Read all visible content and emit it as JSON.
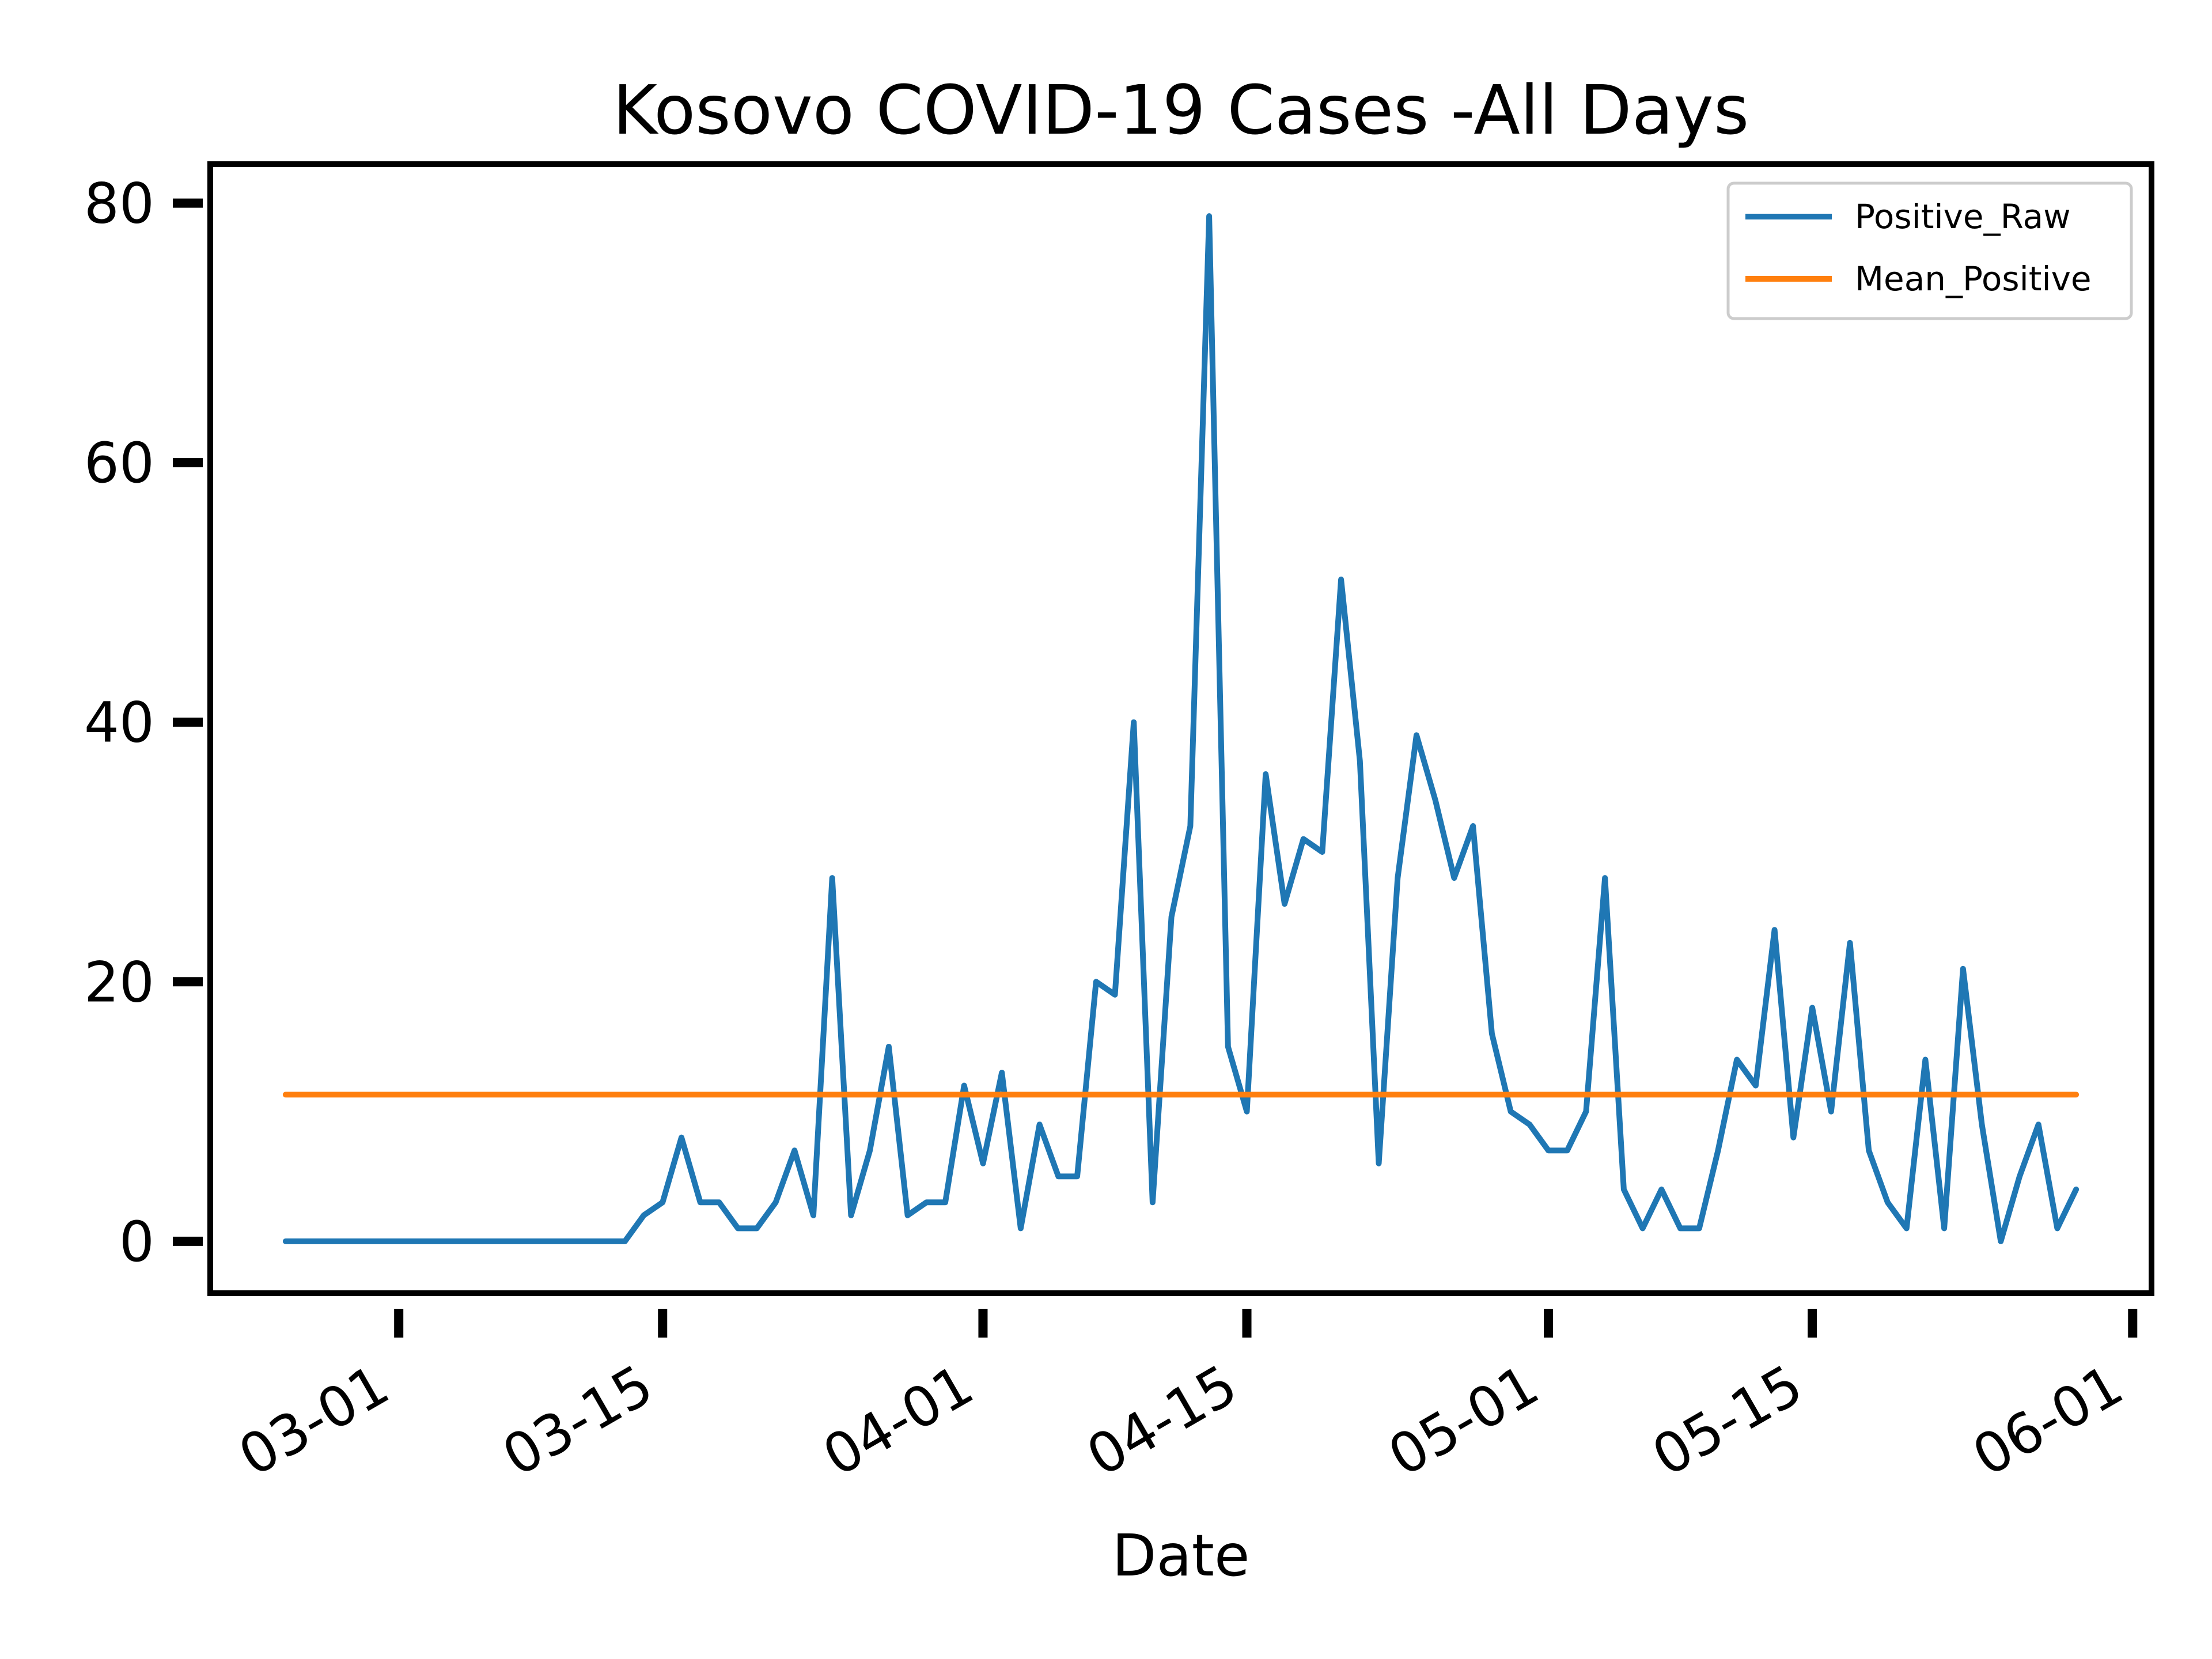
{
  "chart_data": {
    "type": "line",
    "title": "Kosovo COVID-19 Cases -All Days",
    "xlabel": "Date",
    "ylabel": "",
    "ylim": [
      -4,
      83
    ],
    "xlim": [
      "2020-02-20",
      "2020-06-02"
    ],
    "x_ticks": [
      "03-01",
      "03-15",
      "04-01",
      "04-15",
      "05-01",
      "05-15",
      "06-01"
    ],
    "x_tick_dates": [
      "2020-03-01",
      "2020-03-15",
      "2020-04-01",
      "2020-04-15",
      "2020-05-01",
      "2020-05-15",
      "2020-06-01"
    ],
    "y_ticks": [
      "0",
      "20",
      "40",
      "60",
      "80"
    ],
    "y_tick_values": [
      0,
      20,
      40,
      60,
      80
    ],
    "grid": false,
    "legend_position": "top-right",
    "colors": {
      "Positive_Raw": "#1f77b4",
      "Mean_Positive": "#ff7f0e"
    },
    "series": [
      {
        "name": "Positive_Raw",
        "points": [
          [
            "2020-02-24",
            0
          ],
          [
            "2020-02-27",
            0
          ],
          [
            "2020-03-02",
            0
          ],
          [
            "2020-03-06",
            0
          ],
          [
            "2020-03-09",
            0
          ],
          [
            "2020-03-12",
            0
          ],
          [
            "2020-03-13",
            0
          ],
          [
            "2020-03-14",
            2
          ],
          [
            "2020-03-15",
            3
          ],
          [
            "2020-03-16",
            8
          ],
          [
            "2020-03-17",
            3
          ],
          [
            "2020-03-18",
            3
          ],
          [
            "2020-03-19",
            1
          ],
          [
            "2020-03-20",
            1
          ],
          [
            "2020-03-21",
            3
          ],
          [
            "2020-03-22",
            7
          ],
          [
            "2020-03-23",
            2
          ],
          [
            "2020-03-24",
            28
          ],
          [
            "2020-03-25",
            2
          ],
          [
            "2020-03-26",
            7
          ],
          [
            "2020-03-27",
            15
          ],
          [
            "2020-03-28",
            2
          ],
          [
            "2020-03-29",
            3
          ],
          [
            "2020-03-30",
            3
          ],
          [
            "2020-03-31",
            12
          ],
          [
            "2020-04-01",
            6
          ],
          [
            "2020-04-02",
            13
          ],
          [
            "2020-04-03",
            1
          ],
          [
            "2020-04-04",
            9
          ],
          [
            "2020-04-05",
            5
          ],
          [
            "2020-04-06",
            5
          ],
          [
            "2020-04-07",
            20
          ],
          [
            "2020-04-08",
            19
          ],
          [
            "2020-04-09",
            40
          ],
          [
            "2020-04-10",
            3
          ],
          [
            "2020-04-11",
            25
          ],
          [
            "2020-04-12",
            32
          ],
          [
            "2020-04-13",
            79
          ],
          [
            "2020-04-14",
            15
          ],
          [
            "2020-04-15",
            10
          ],
          [
            "2020-04-16",
            36
          ],
          [
            "2020-04-17",
            26
          ],
          [
            "2020-04-18",
            31
          ],
          [
            "2020-04-19",
            30
          ],
          [
            "2020-04-20",
            51
          ],
          [
            "2020-04-21",
            37
          ],
          [
            "2020-04-22",
            6
          ],
          [
            "2020-04-23",
            28
          ],
          [
            "2020-04-24",
            39
          ],
          [
            "2020-04-25",
            34
          ],
          [
            "2020-04-26",
            28
          ],
          [
            "2020-04-27",
            32
          ],
          [
            "2020-04-28",
            16
          ],
          [
            "2020-04-29",
            10
          ],
          [
            "2020-04-30",
            9
          ],
          [
            "2020-05-01",
            7
          ],
          [
            "2020-05-02",
            7
          ],
          [
            "2020-05-03",
            10
          ],
          [
            "2020-05-04",
            28
          ],
          [
            "2020-05-05",
            4
          ],
          [
            "2020-05-06",
            1
          ],
          [
            "2020-05-07",
            4
          ],
          [
            "2020-05-08",
            1
          ],
          [
            "2020-05-09",
            1
          ],
          [
            "2020-05-10",
            7
          ],
          [
            "2020-05-11",
            14
          ],
          [
            "2020-05-12",
            12
          ],
          [
            "2020-05-13",
            24
          ],
          [
            "2020-05-14",
            8
          ],
          [
            "2020-05-15",
            18
          ],
          [
            "2020-05-16",
            10
          ],
          [
            "2020-05-17",
            23
          ],
          [
            "2020-05-18",
            7
          ],
          [
            "2020-05-19",
            3
          ],
          [
            "2020-05-20",
            1
          ],
          [
            "2020-05-21",
            14
          ],
          [
            "2020-05-22",
            1
          ],
          [
            "2020-05-23",
            21
          ],
          [
            "2020-05-24",
            9
          ],
          [
            "2020-05-25",
            0
          ],
          [
            "2020-05-26",
            5
          ],
          [
            "2020-05-27",
            9
          ],
          [
            "2020-05-28",
            1
          ],
          [
            "2020-05-29",
            4
          ]
        ]
      },
      {
        "name": "Mean_Positive",
        "points": [
          [
            "2020-02-24",
            11.3
          ],
          [
            "2020-05-29",
            11.3
          ]
        ]
      }
    ]
  }
}
